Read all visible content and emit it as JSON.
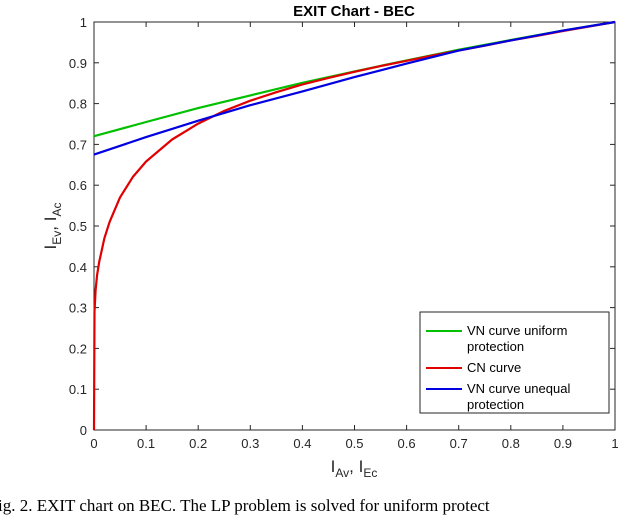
{
  "chart_data": {
    "type": "line",
    "title": "EXIT Chart - BEC",
    "xlabel": {
      "main": "I",
      "sub1": "Av",
      "sep": ", ",
      "main2": "I",
      "sub2": "Ec"
    },
    "ylabel": {
      "main": "I",
      "sub1": "Ev",
      "sep": ", ",
      "main2": "I",
      "sub2": "Ac"
    },
    "xlim": [
      0,
      1
    ],
    "ylim": [
      0,
      1
    ],
    "xticks": [
      "0",
      "0.1",
      "0.2",
      "0.3",
      "0.4",
      "0.5",
      "0.6",
      "0.7",
      "0.8",
      "0.9",
      "1"
    ],
    "yticks": [
      "0",
      "0.1",
      "0.2",
      "0.3",
      "0.4",
      "0.5",
      "0.6",
      "0.7",
      "0.8",
      "0.9",
      "1"
    ],
    "grid": false,
    "legend_position": "bottom-right",
    "series": [
      {
        "name": "VN curve uniform protection",
        "color": "#00c000",
        "x": [
          0,
          0.1,
          0.2,
          0.3,
          0.4,
          0.5,
          0.6,
          0.7,
          0.8,
          0.9,
          1.0
        ],
        "y": [
          0.72,
          0.755,
          0.789,
          0.82,
          0.851,
          0.879,
          0.906,
          0.932,
          0.956,
          0.979,
          1.0
        ]
      },
      {
        "name": "CN curve",
        "color": "#e00000",
        "x": [
          0,
          0.001,
          0.003,
          0.006,
          0.01,
          0.02,
          0.03,
          0.05,
          0.075,
          0.1,
          0.15,
          0.2,
          0.25,
          0.3,
          0.35,
          0.4,
          0.45,
          0.5,
          0.55,
          0.6,
          0.65,
          0.7,
          0.75,
          0.8,
          0.85,
          0.9,
          0.95,
          1.0
        ],
        "y": [
          0,
          0.29,
          0.343,
          0.38,
          0.412,
          0.47,
          0.51,
          0.57,
          0.621,
          0.658,
          0.712,
          0.751,
          0.782,
          0.807,
          0.828,
          0.847,
          0.863,
          0.878,
          0.892,
          0.905,
          0.918,
          0.93,
          0.942,
          0.955,
          0.966,
          0.978,
          0.989,
          1.0
        ]
      },
      {
        "name": "VN curve unequal protection",
        "color": "#0000e0",
        "x": [
          0,
          0.1,
          0.2,
          0.3,
          0.4,
          0.5,
          0.6,
          0.7,
          0.8,
          0.9,
          1.0
        ],
        "y": [
          0.675,
          0.718,
          0.758,
          0.796,
          0.83,
          0.865,
          0.898,
          0.93,
          0.955,
          0.979,
          1.0
        ]
      }
    ],
    "legend": {
      "entries": [
        {
          "line1": "VN curve uniform",
          "line2": "protection",
          "color": "#00c000"
        },
        {
          "line1": "CN curve",
          "line2": "",
          "color": "#e00000"
        },
        {
          "line1": "VN curve unequal",
          "line2": "protection",
          "color": "#0000e0"
        }
      ]
    }
  },
  "caption": "ig. 2.  EXIT chart on BEC. The LP problem is solved for uniform protect"
}
